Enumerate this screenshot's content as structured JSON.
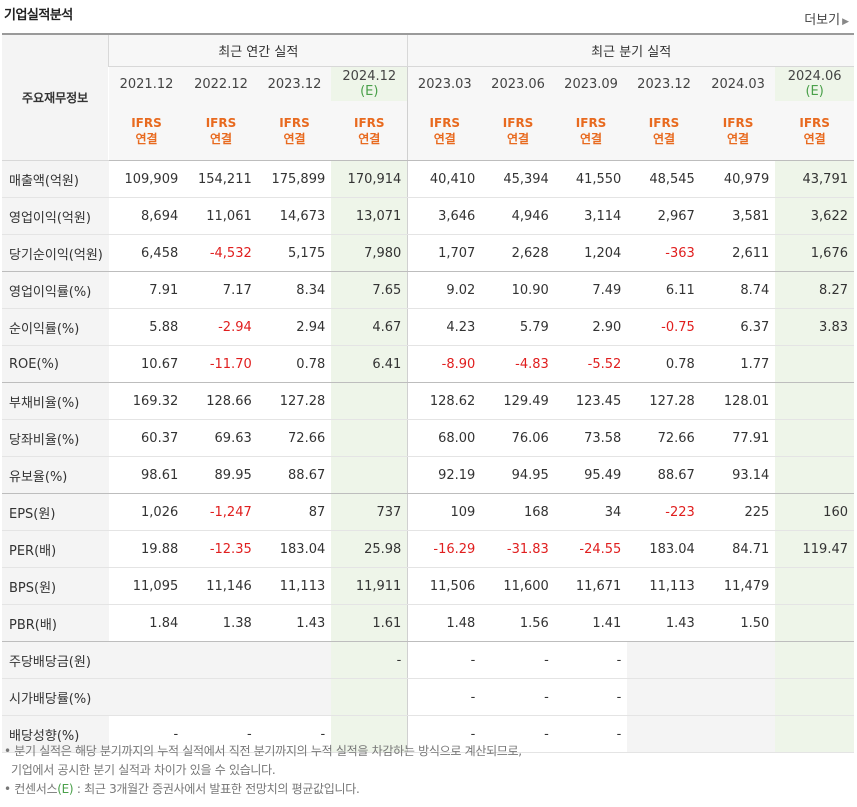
{
  "header": {
    "title": "기업실적분석",
    "more_label": "더보기",
    "more_arrow": "▶"
  },
  "table": {
    "label_header": "주요재무정보",
    "annual_group": "최근 연간 실적",
    "quarter_group": "최근 분기 실적",
    "periods": [
      {
        "date": "2021.12",
        "est": ""
      },
      {
        "date": "2022.12",
        "est": ""
      },
      {
        "date": "2023.12",
        "est": ""
      },
      {
        "date": "2024.12",
        "est": "(E)"
      },
      {
        "date": "2023.03",
        "est": ""
      },
      {
        "date": "2023.06",
        "est": ""
      },
      {
        "date": "2023.09",
        "est": ""
      },
      {
        "date": "2023.12",
        "est": ""
      },
      {
        "date": "2024.03",
        "est": ""
      },
      {
        "date": "2024.06",
        "est": "(E)"
      }
    ],
    "ifrs_line1": "IFRS",
    "ifrs_line2": "연결",
    "rows": [
      {
        "label": "매출액(억원)",
        "values": [
          "109,909",
          "154,211",
          "175,899",
          "170,914",
          "40,410",
          "45,394",
          "41,550",
          "48,545",
          "40,979",
          "43,791"
        ]
      },
      {
        "label": "영업이익(억원)",
        "values": [
          "8,694",
          "11,061",
          "14,673",
          "13,071",
          "3,646",
          "4,946",
          "3,114",
          "2,967",
          "3,581",
          "3,622"
        ]
      },
      {
        "label": "당기순이익(억원)",
        "values": [
          "6,458",
          "-4,532",
          "5,175",
          "7,980",
          "1,707",
          "2,628",
          "1,204",
          "-363",
          "2,611",
          "1,676"
        ]
      },
      {
        "label": "영업이익률(%)",
        "values": [
          "7.91",
          "7.17",
          "8.34",
          "7.65",
          "9.02",
          "10.90",
          "7.49",
          "6.11",
          "8.74",
          "8.27"
        ]
      },
      {
        "label": "순이익률(%)",
        "values": [
          "5.88",
          "-2.94",
          "2.94",
          "4.67",
          "4.23",
          "5.79",
          "2.90",
          "-0.75",
          "6.37",
          "3.83"
        ]
      },
      {
        "label": "ROE(%)",
        "values": [
          "10.67",
          "-11.70",
          "0.78",
          "6.41",
          "-8.90",
          "-4.83",
          "-5.52",
          "0.78",
          "1.77",
          ""
        ]
      },
      {
        "label": "부채비율(%)",
        "values": [
          "169.32",
          "128.66",
          "127.28",
          "",
          "128.62",
          "129.49",
          "123.45",
          "127.28",
          "128.01",
          ""
        ]
      },
      {
        "label": "당좌비율(%)",
        "values": [
          "60.37",
          "69.63",
          "72.66",
          "",
          "68.00",
          "76.06",
          "73.58",
          "72.66",
          "77.91",
          ""
        ]
      },
      {
        "label": "유보율(%)",
        "values": [
          "98.61",
          "89.95",
          "88.67",
          "",
          "92.19",
          "94.95",
          "95.49",
          "88.67",
          "93.14",
          ""
        ]
      },
      {
        "label": "EPS(원)",
        "values": [
          "1,026",
          "-1,247",
          "87",
          "737",
          "109",
          "168",
          "34",
          "-223",
          "225",
          "160"
        ]
      },
      {
        "label": "PER(배)",
        "values": [
          "19.88",
          "-12.35",
          "183.04",
          "25.98",
          "-16.29",
          "-31.83",
          "-24.55",
          "183.04",
          "84.71",
          "119.47"
        ]
      },
      {
        "label": "BPS(원)",
        "values": [
          "11,095",
          "11,146",
          "11,113",
          "11,911",
          "11,506",
          "11,600",
          "11,671",
          "11,113",
          "11,479",
          ""
        ]
      },
      {
        "label": "PBR(배)",
        "values": [
          "1.84",
          "1.38",
          "1.43",
          "1.61",
          "1.48",
          "1.56",
          "1.41",
          "1.43",
          "1.50",
          ""
        ]
      },
      {
        "label": "주당배당금(원)",
        "values": [
          "",
          "",
          "",
          "-",
          "-",
          "-",
          "-",
          "",
          "",
          ""
        ]
      },
      {
        "label": "시가배당률(%)",
        "values": [
          "",
          "",
          "",
          "",
          "-",
          "-",
          "-",
          "",
          "",
          ""
        ]
      },
      {
        "label": "배당성향(%)",
        "values": [
          "-",
          "-",
          "-",
          "",
          "-",
          "-",
          "-",
          "",
          "",
          ""
        ]
      }
    ]
  },
  "notes": {
    "line1": "• 분기 실적은 해당 분기까지의 누적 실적에서 직전 분기까지의 누적 실적을 차감하는 방식으로 계산되므로,",
    "line2": "  기업에서 공시한 분기 실적과 차이가 있을 수 있습니다.",
    "line3_pre": "• 컨센서스",
    "line3_e": "(E)",
    "line3_post": " : 최근 3개월간 증권사에서 발표한 전망치의 평균값입니다."
  }
}
